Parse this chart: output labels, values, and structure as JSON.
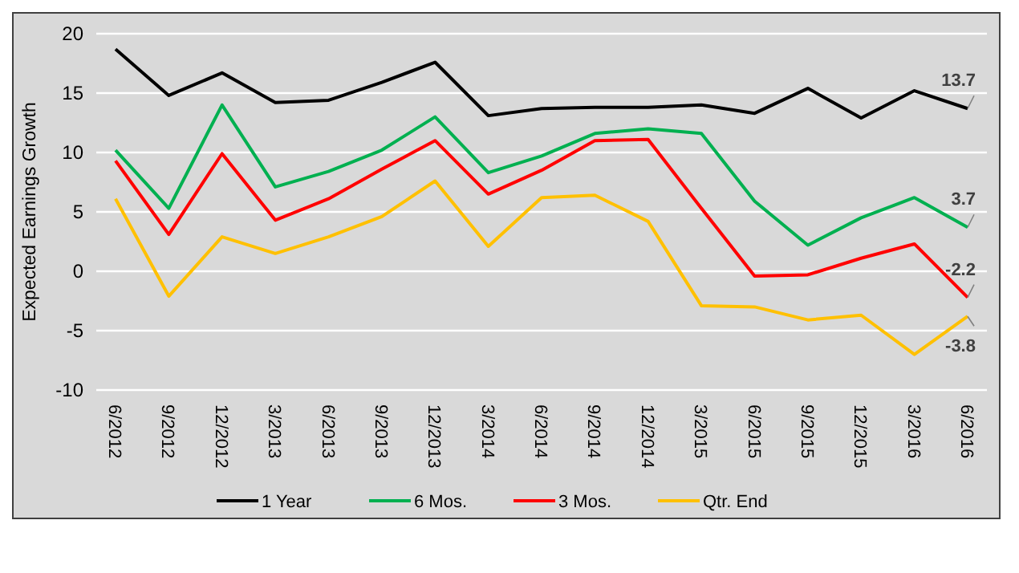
{
  "chart_data": {
    "type": "line",
    "ylabel": "Expected Earnings Growth",
    "categories": [
      "6/2012",
      "9/2012",
      "12/2012",
      "3/2013",
      "6/2013",
      "9/2013",
      "12/2013",
      "3/2014",
      "6/2014",
      "9/2014",
      "12/2014",
      "3/2015",
      "6/2015",
      "9/2015",
      "12/2015",
      "3/2016",
      "6/2016"
    ],
    "series": [
      {
        "name": "1 Year",
        "color": "#000000",
        "values": [
          18.7,
          14.8,
          16.7,
          14.2,
          14.4,
          15.9,
          17.6,
          13.1,
          13.7,
          13.8,
          13.8,
          14.0,
          13.3,
          15.4,
          12.9,
          15.2,
          13.7
        ],
        "value_labels": [
          null,
          null,
          null,
          null,
          null,
          null,
          null,
          null,
          null,
          null,
          null,
          null,
          null,
          null,
          null,
          null,
          "13.7"
        ]
      },
      {
        "name": "6 Mos.",
        "color": "#00b050",
        "values": [
          10.2,
          5.3,
          14.0,
          7.1,
          8.4,
          10.2,
          13.0,
          8.3,
          9.7,
          11.6,
          12.0,
          11.6,
          5.9,
          2.2,
          4.5,
          6.2,
          3.7
        ],
        "value_labels": [
          null,
          null,
          null,
          null,
          null,
          null,
          null,
          null,
          null,
          null,
          null,
          null,
          null,
          null,
          null,
          null,
          "3.7"
        ]
      },
      {
        "name": "3 Mos.",
        "color": "#ff0000",
        "values": [
          9.3,
          3.1,
          9.9,
          4.3,
          6.1,
          8.6,
          11.0,
          6.5,
          8.5,
          11.0,
          11.1,
          5.3,
          -0.4,
          -0.3,
          1.1,
          2.3,
          -2.2
        ],
        "value_labels": [
          null,
          null,
          null,
          null,
          null,
          null,
          null,
          null,
          null,
          null,
          null,
          null,
          null,
          null,
          null,
          null,
          "-2.2"
        ]
      },
      {
        "name": "Qtr. End",
        "color": "#ffc000",
        "values": [
          6.1,
          -2.1,
          2.9,
          1.5,
          2.9,
          4.6,
          7.6,
          2.1,
          6.2,
          6.4,
          4.2,
          -2.9,
          -3.0,
          -4.1,
          -3.7,
          -7.0,
          -3.8
        ],
        "value_labels": [
          null,
          null,
          null,
          null,
          null,
          null,
          null,
          null,
          null,
          null,
          null,
          null,
          null,
          null,
          null,
          null,
          "-3.8"
        ]
      }
    ],
    "ylim": [
      -10,
      20
    ],
    "yticks": [
      -10,
      -5,
      0,
      5,
      10,
      15,
      20
    ],
    "grid": "y",
    "legend": "bottom",
    "marker": "none",
    "line_style": "solid"
  }
}
